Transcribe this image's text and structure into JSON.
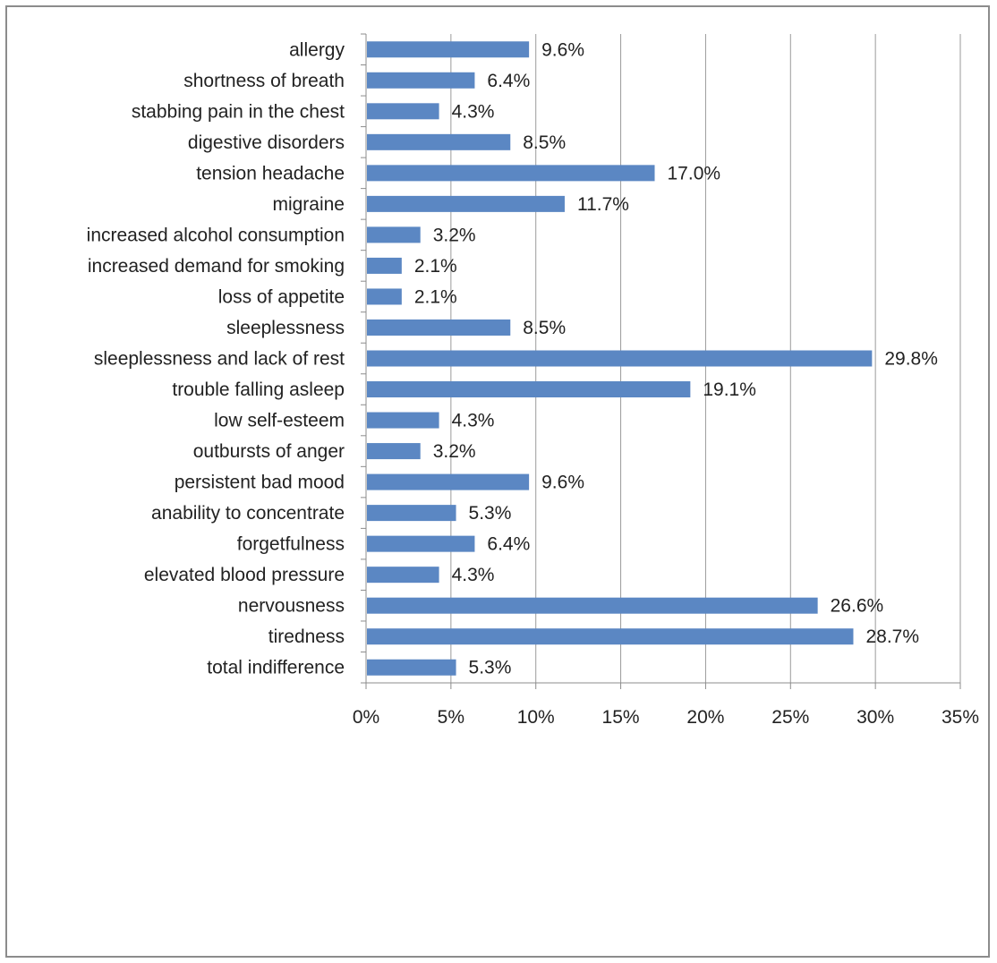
{
  "chart_data": {
    "type": "bar",
    "orientation": "horizontal",
    "categories": [
      "allergy",
      "shortness of breath",
      "stabbing pain in the chest",
      "digestive disorders",
      "tension headache",
      "migraine",
      "increased alcohol consumption",
      "increased demand for smoking",
      "loss of appetite",
      "sleeplessness",
      "sleeplessness and lack of rest",
      "trouble falling asleep",
      "low self-esteem",
      "outbursts of anger",
      "persistent bad mood",
      "anability to concentrate",
      "forgetfulness",
      "elevated blood pressure",
      "nervousness",
      "tiredness",
      "total indifference"
    ],
    "values": [
      9.6,
      6.4,
      4.3,
      8.5,
      17.0,
      11.7,
      3.2,
      2.1,
      2.1,
      8.5,
      29.8,
      19.1,
      4.3,
      3.2,
      9.6,
      5.3,
      6.4,
      4.3,
      26.6,
      28.7,
      5.3
    ],
    "value_labels": [
      "9.6%",
      "6.4%",
      "4.3%",
      "8.5%",
      "17.0%",
      "11.7%",
      "3.2%",
      "2.1%",
      "2.1%",
      "8.5%",
      "29.8%",
      "19.1%",
      "4.3%",
      "3.2%",
      "9.6%",
      "5.3%",
      "6.4%",
      "4.3%",
      "26.6%",
      "28.7%",
      "5.3%"
    ],
    "xticks": [
      0,
      5,
      10,
      15,
      20,
      25,
      30,
      35
    ],
    "xtick_labels": [
      "0%",
      "5%",
      "10%",
      "15%",
      "20%",
      "25%",
      "30%",
      "35%"
    ],
    "xlim": [
      0,
      35
    ],
    "grid": true,
    "legend": "none",
    "title": "",
    "xlabel": "",
    "ylabel": "",
    "colors": {
      "bar": "#5b87c3",
      "grid": "#9a9a9a",
      "axis": "#8c8c8c",
      "text": "#222222"
    }
  }
}
